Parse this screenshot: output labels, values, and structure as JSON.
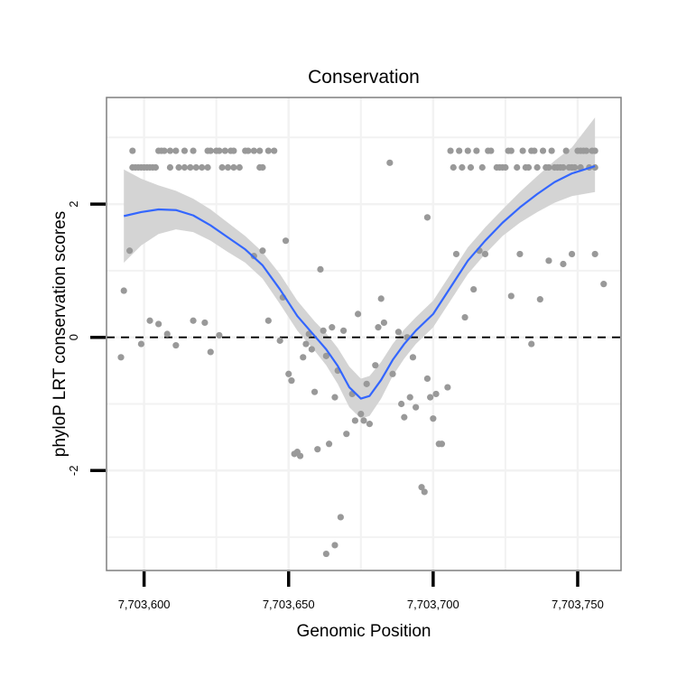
{
  "chart_data": {
    "type": "scatter",
    "title": "Conservation",
    "xlabel": "Genomic Position",
    "ylabel": "phyloP LRT conservation scores",
    "xlim": [
      7703587,
      7703765
    ],
    "ylim": [
      -3.5,
      3.6
    ],
    "x_ticks": [
      {
        "value": 7703600,
        "label": "7,703,600"
      },
      {
        "value": 7703650,
        "label": "7,703,650"
      },
      {
        "value": 7703700,
        "label": "7,703,700"
      },
      {
        "value": 7703750,
        "label": "7,703,750"
      }
    ],
    "y_ticks": [
      {
        "value": -2,
        "label": "-2"
      },
      {
        "value": 0,
        "label": "0"
      },
      {
        "value": 2,
        "label": "2"
      }
    ],
    "x_minor_grid": [
      7703625,
      7703675,
      7703725
    ],
    "y_minor_grid": [
      -3,
      -1,
      1,
      3
    ],
    "reference_line": {
      "y": 0,
      "style": "dashed"
    },
    "colors": {
      "points": "#999999",
      "smooth_line": "#3366ff",
      "ribbon": "#d4d4d4",
      "frame": "#7f7f7f",
      "grid": "#f2f2f2",
      "reference": "#000000"
    },
    "series": [
      {
        "name": "scores",
        "kind": "points",
        "points": [
          [
            7703596,
            2.8
          ],
          [
            7703596,
            2.55
          ],
          [
            7703597,
            2.55
          ],
          [
            7703598,
            2.55
          ],
          [
            7703599,
            2.55
          ],
          [
            7703600,
            2.55
          ],
          [
            7703601,
            2.55
          ],
          [
            7703602,
            2.55
          ],
          [
            7703603,
            2.55
          ],
          [
            7703604,
            2.55
          ],
          [
            7703605,
            2.8
          ],
          [
            7703606,
            2.8
          ],
          [
            7703607,
            2.8
          ],
          [
            7703609,
            2.8
          ],
          [
            7703609,
            2.55
          ],
          [
            7703611,
            2.8
          ],
          [
            7703612,
            2.55
          ],
          [
            7703614,
            2.8
          ],
          [
            7703614,
            2.55
          ],
          [
            7703616,
            2.55
          ],
          [
            7703617,
            2.8
          ],
          [
            7703618,
            2.55
          ],
          [
            7703620,
            2.55
          ],
          [
            7703622,
            2.8
          ],
          [
            7703622,
            2.55
          ],
          [
            7703623,
            2.8
          ],
          [
            7703625,
            2.8
          ],
          [
            7703626,
            2.8
          ],
          [
            7703627,
            2.55
          ],
          [
            7703628,
            2.8
          ],
          [
            7703629,
            2.55
          ],
          [
            7703630,
            2.8
          ],
          [
            7703631,
            2.8
          ],
          [
            7703631,
            2.55
          ],
          [
            7703633,
            2.55
          ],
          [
            7703635,
            2.8
          ],
          [
            7703636,
            2.8
          ],
          [
            7703638,
            2.8
          ],
          [
            7703640,
            2.8
          ],
          [
            7703640,
            2.55
          ],
          [
            7703641,
            2.55
          ],
          [
            7703643,
            2.8
          ],
          [
            7703645,
            2.8
          ],
          [
            7703706,
            2.8
          ],
          [
            7703707,
            2.55
          ],
          [
            7703709,
            2.8
          ],
          [
            7703710,
            2.55
          ],
          [
            7703712,
            2.8
          ],
          [
            7703713,
            2.55
          ],
          [
            7703715,
            2.8
          ],
          [
            7703717,
            2.55
          ],
          [
            7703719,
            2.8
          ],
          [
            7703720,
            2.8
          ],
          [
            7703722,
            2.55
          ],
          [
            7703723,
            2.55
          ],
          [
            7703724,
            2.55
          ],
          [
            7703725,
            2.55
          ],
          [
            7703726,
            2.8
          ],
          [
            7703727,
            2.8
          ],
          [
            7703729,
            2.55
          ],
          [
            7703731,
            2.8
          ],
          [
            7703732,
            2.55
          ],
          [
            7703733,
            2.55
          ],
          [
            7703734,
            2.8
          ],
          [
            7703735,
            2.8
          ],
          [
            7703736,
            2.55
          ],
          [
            7703738,
            2.8
          ],
          [
            7703739,
            2.55
          ],
          [
            7703740,
            2.55
          ],
          [
            7703741,
            2.8
          ],
          [
            7703742,
            2.55
          ],
          [
            7703743,
            2.55
          ],
          [
            7703744,
            2.55
          ],
          [
            7703745,
            2.55
          ],
          [
            7703746,
            2.8
          ],
          [
            7703747,
            2.55
          ],
          [
            7703748,
            2.55
          ],
          [
            7703749,
            2.55
          ],
          [
            7703750,
            2.8
          ],
          [
            7703751,
            2.8
          ],
          [
            7703751,
            2.55
          ],
          [
            7703752,
            2.8
          ],
          [
            7703753,
            2.8
          ],
          [
            7703754,
            2.55
          ],
          [
            7703755,
            2.8
          ],
          [
            7703756,
            2.8
          ],
          [
            7703756,
            2.55
          ],
          [
            7703685,
            2.62
          ],
          [
            7703698,
            1.8
          ],
          [
            7703593,
            0.7
          ],
          [
            7703595,
            1.3
          ],
          [
            7703592,
            -0.3
          ],
          [
            7703599,
            -0.1
          ],
          [
            7703602,
            0.25
          ],
          [
            7703605,
            0.2
          ],
          [
            7703608,
            0.05
          ],
          [
            7703611,
            -0.12
          ],
          [
            7703617,
            0.25
          ],
          [
            7703621,
            0.22
          ],
          [
            7703623,
            -0.22
          ],
          [
            7703626,
            0.03
          ],
          [
            7703638,
            1.22
          ],
          [
            7703641,
            1.3
          ],
          [
            7703643,
            0.25
          ],
          [
            7703647,
            -0.05
          ],
          [
            7703649,
            1.45
          ],
          [
            7703648,
            0.6
          ],
          [
            7703650,
            -0.55
          ],
          [
            7703651,
            -0.65
          ],
          [
            7703652,
            -1.75
          ],
          [
            7703653,
            -1.72
          ],
          [
            7703654,
            -1.78
          ],
          [
            7703655,
            -0.3
          ],
          [
            7703656,
            -0.1
          ],
          [
            7703657,
            0.05
          ],
          [
            7703658,
            -0.18
          ],
          [
            7703659,
            -0.82
          ],
          [
            7703660,
            -1.68
          ],
          [
            7703661,
            1.02
          ],
          [
            7703662,
            0.1
          ],
          [
            7703663,
            -0.28
          ],
          [
            7703664,
            -1.6
          ],
          [
            7703665,
            0.15
          ],
          [
            7703666,
            -0.9
          ],
          [
            7703667,
            -0.5
          ],
          [
            7703668,
            -2.7
          ],
          [
            7703669,
            0.1
          ],
          [
            7703670,
            -1.45
          ],
          [
            7703672,
            -0.85
          ],
          [
            7703673,
            -1.25
          ],
          [
            7703674,
            0.35
          ],
          [
            7703675,
            -1.15
          ],
          [
            7703676,
            -1.25
          ],
          [
            7703677,
            -0.7
          ],
          [
            7703678,
            -1.3
          ],
          [
            7703680,
            -0.42
          ],
          [
            7703681,
            0.15
          ],
          [
            7703682,
            0.58
          ],
          [
            7703683,
            0.22
          ],
          [
            7703686,
            -0.55
          ],
          [
            7703688,
            0.08
          ],
          [
            7703689,
            -1.0
          ],
          [
            7703690,
            -1.2
          ],
          [
            7703691,
            0.0
          ],
          [
            7703692,
            -0.9
          ],
          [
            7703693,
            -0.3
          ],
          [
            7703694,
            -1.05
          ],
          [
            7703696,
            -2.25
          ],
          [
            7703697,
            -2.32
          ],
          [
            7703698,
            -0.62
          ],
          [
            7703699,
            -0.9
          ],
          [
            7703700,
            -1.22
          ],
          [
            7703701,
            -0.85
          ],
          [
            7703702,
            -1.6
          ],
          [
            7703703,
            -1.6
          ],
          [
            7703705,
            -0.75
          ],
          [
            7703708,
            1.25
          ],
          [
            7703711,
            0.3
          ],
          [
            7703714,
            0.72
          ],
          [
            7703716,
            1.3
          ],
          [
            7703718,
            1.25
          ],
          [
            7703727,
            0.62
          ],
          [
            7703730,
            1.25
          ],
          [
            7703734,
            -0.1
          ],
          [
            7703737,
            0.57
          ],
          [
            7703740,
            1.15
          ],
          [
            7703745,
            1.1
          ],
          [
            7703748,
            1.25
          ],
          [
            7703756,
            1.25
          ],
          [
            7703759,
            0.8
          ],
          [
            7703663,
            -3.25
          ],
          [
            7703666,
            -3.12
          ]
        ]
      },
      {
        "name": "smoothed fit",
        "kind": "line",
        "points": [
          [
            7703593,
            1.82
          ],
          [
            7703599,
            1.88
          ],
          [
            7703605,
            1.92
          ],
          [
            7703611,
            1.91
          ],
          [
            7703617,
            1.83
          ],
          [
            7703623,
            1.68
          ],
          [
            7703629,
            1.5
          ],
          [
            7703635,
            1.32
          ],
          [
            7703641,
            1.08
          ],
          [
            7703647,
            0.72
          ],
          [
            7703653,
            0.32
          ],
          [
            7703659,
            0.02
          ],
          [
            7703663,
            -0.18
          ],
          [
            7703667,
            -0.43
          ],
          [
            7703671,
            -0.75
          ],
          [
            7703675,
            -0.92
          ],
          [
            7703678,
            -0.88
          ],
          [
            7703682,
            -0.64
          ],
          [
            7703686,
            -0.34
          ],
          [
            7703690,
            -0.1
          ],
          [
            7703694,
            0.1
          ],
          [
            7703700,
            0.35
          ],
          [
            7703706,
            0.75
          ],
          [
            7703712,
            1.15
          ],
          [
            7703718,
            1.45
          ],
          [
            7703724,
            1.72
          ],
          [
            7703730,
            1.95
          ],
          [
            7703736,
            2.15
          ],
          [
            7703742,
            2.33
          ],
          [
            7703748,
            2.46
          ],
          [
            7703756,
            2.57
          ]
        ]
      },
      {
        "name": "confidence band",
        "kind": "ribbon",
        "points": [
          [
            7703593,
            1.12,
            2.52
          ],
          [
            7703599,
            1.38,
            2.38
          ],
          [
            7703605,
            1.55,
            2.28
          ],
          [
            7703611,
            1.62,
            2.2
          ],
          [
            7703617,
            1.58,
            2.08
          ],
          [
            7703623,
            1.45,
            1.92
          ],
          [
            7703629,
            1.28,
            1.72
          ],
          [
            7703635,
            1.12,
            1.52
          ],
          [
            7703641,
            0.88,
            1.28
          ],
          [
            7703647,
            0.5,
            0.95
          ],
          [
            7703653,
            0.1,
            0.55
          ],
          [
            7703659,
            -0.2,
            0.24
          ],
          [
            7703663,
            -0.42,
            0.06
          ],
          [
            7703667,
            -0.7,
            -0.16
          ],
          [
            7703671,
            -1.05,
            -0.44
          ],
          [
            7703675,
            -1.22,
            -0.62
          ],
          [
            7703678,
            -1.18,
            -0.58
          ],
          [
            7703682,
            -0.92,
            -0.37
          ],
          [
            7703686,
            -0.58,
            -0.1
          ],
          [
            7703690,
            -0.32,
            0.12
          ],
          [
            7703694,
            -0.1,
            0.3
          ],
          [
            7703700,
            0.15,
            0.55
          ],
          [
            7703706,
            0.55,
            0.95
          ],
          [
            7703712,
            0.95,
            1.35
          ],
          [
            7703718,
            1.25,
            1.65
          ],
          [
            7703724,
            1.52,
            1.92
          ],
          [
            7703730,
            1.72,
            2.18
          ],
          [
            7703736,
            1.88,
            2.42
          ],
          [
            7703742,
            2.02,
            2.65
          ],
          [
            7703748,
            2.12,
            2.85
          ],
          [
            7703756,
            2.18,
            3.3
          ]
        ]
      }
    ]
  }
}
